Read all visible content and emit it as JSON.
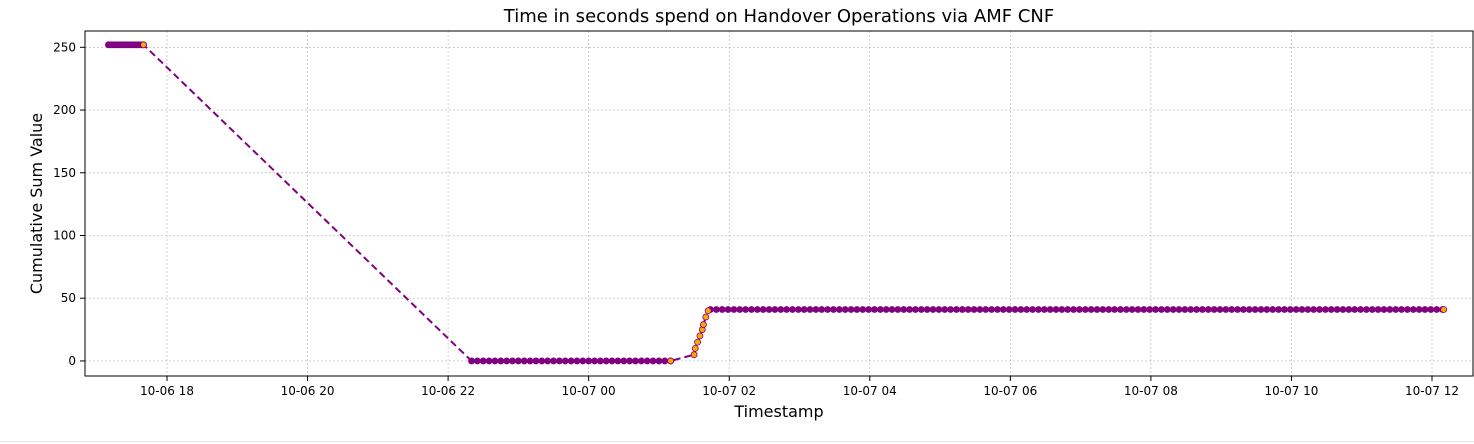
{
  "chart_data": {
    "type": "line",
    "title": "Time in seconds spend on Handover Operations via AMF CNF",
    "xlabel": "Timestamp",
    "ylabel": "Cumulative Sum Value",
    "xlim": [
      "2024-10-06T16:50",
      "2024-10-07T12:35"
    ],
    "ylim": [
      -12,
      263
    ],
    "x_ticks": [
      "10-06 18",
      "10-06 20",
      "10-06 22",
      "10-07 00",
      "10-07 02",
      "10-07 04",
      "10-07 06",
      "10-07 08",
      "10-07 10",
      "10-07 12"
    ],
    "y_ticks": [
      0,
      50,
      100,
      150,
      200,
      250
    ],
    "grid": true,
    "line_style": "dashed",
    "colors": {
      "line": "#800080",
      "marker_fill": "#800080",
      "highlight_fill": "#ffa500",
      "grid": "#b0b0b0"
    },
    "series": [
      {
        "segments": [
          {
            "start": "2024-10-06T17:10",
            "end": "2024-10-06T17:40",
            "step_minutes": 2,
            "value": 252
          },
          {
            "start": "2024-10-06T22:20",
            "end": "2024-10-07T01:10",
            "step_minutes": 5,
            "value": 0
          },
          {
            "start": "2024-10-07T01:44",
            "end": "2024-10-07T12:10",
            "step_minutes": 5,
            "value": 41
          }
        ],
        "points": [
          {
            "x": "2024-10-06T17:40",
            "y": 252
          },
          {
            "x": "2024-10-07T01:10",
            "y": 0
          },
          {
            "x": "2024-10-07T01:30",
            "y": 5
          },
          {
            "x": "2024-10-07T01:31",
            "y": 10
          },
          {
            "x": "2024-10-07T01:33",
            "y": 15
          },
          {
            "x": "2024-10-07T01:35",
            "y": 20
          },
          {
            "x": "2024-10-07T01:37",
            "y": 25
          },
          {
            "x": "2024-10-07T01:38",
            "y": 29
          },
          {
            "x": "2024-10-07T01:40",
            "y": 35
          },
          {
            "x": "2024-10-07T01:42",
            "y": 40
          },
          {
            "x": "2024-10-07T12:10",
            "y": 41
          }
        ]
      }
    ]
  }
}
